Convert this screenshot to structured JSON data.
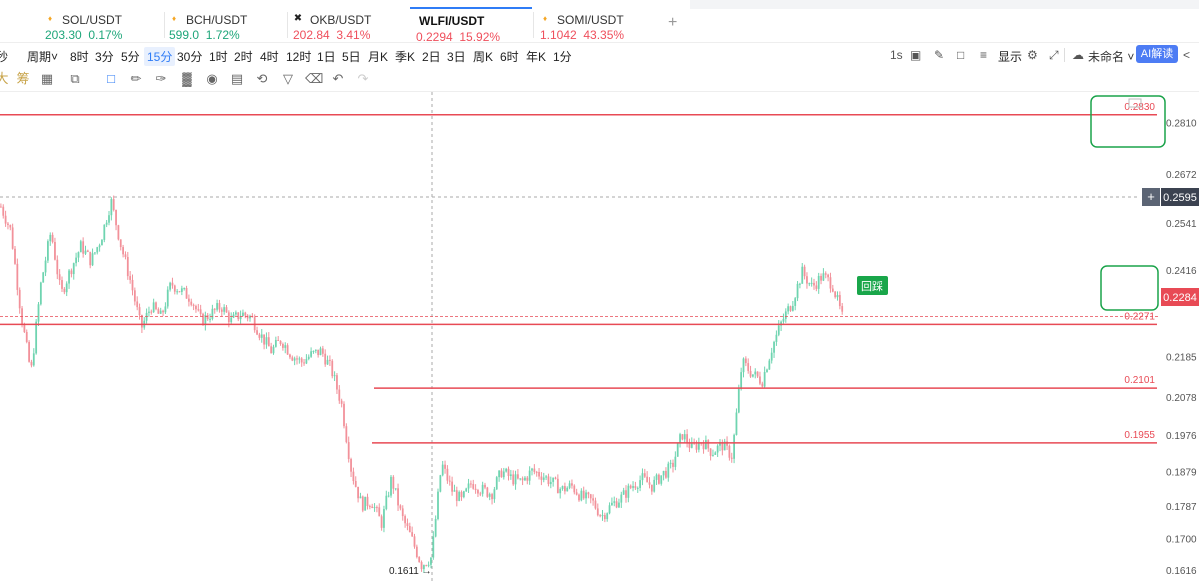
{
  "tickers": [
    {
      "symbol": "SOL/USDT",
      "price": "203.30",
      "change": "0.17%",
      "dir": "up",
      "icon": "coin-icon"
    },
    {
      "symbol": "BCH/USDT",
      "price": "599.0",
      "change": "1.72%",
      "dir": "up",
      "icon": "coin-icon"
    },
    {
      "symbol": "OKB/USDT",
      "price": "202.84",
      "change": "3.41%",
      "dir": "dn",
      "icon": "okb-logo-icon"
    },
    {
      "symbol": "WLFI/USDT",
      "price": "0.2294",
      "change": "15.92%",
      "dir": "dn",
      "icon": "",
      "active": true
    },
    {
      "symbol": "SOMI/USDT",
      "price": "1.1042",
      "change": "43.35%",
      "dir": "dn",
      "icon": "coin-icon"
    }
  ],
  "add_tab_label": "+",
  "periods": [
    "秒",
    "周期",
    "8时",
    "3分",
    "5分",
    "15分",
    "30分",
    "1时",
    "2时",
    "4时",
    "12时",
    "1日",
    "5日",
    "月K",
    "季K",
    "2日",
    "3日",
    "周K",
    "6时",
    "年K",
    "1分"
  ],
  "active_period": "15分",
  "right_tools": {
    "interval": "1s",
    "display": "显示",
    "layout_name": "未命名",
    "ai_button": "AI解读"
  },
  "draw_tools": [
    "fib-icon",
    "compare-icon",
    "copy-layout-icon",
    "pen-tool-icon",
    "ruler-icon",
    "highlighter-icon",
    "brush-icon",
    "indicator-icon",
    "lock-icon",
    "note-icon",
    "magnet-icon",
    "filter-icon",
    "trash-icon",
    "undo-icon",
    "redo-icon"
  ],
  "draw_left_labels": [
    "大",
    "筹"
  ],
  "chart_data": {
    "type": "candlestick",
    "y_axis_ticks": [
      "0.2810",
      "0.2672",
      "0.2541",
      "0.2416",
      "0.2185",
      "0.2078",
      "0.1976",
      "0.1879",
      "0.1787",
      "0.1700",
      "0.1616"
    ],
    "ylim": [
      0.1616,
      0.288
    ],
    "horizontal_levels": [
      {
        "value": 0.283,
        "label": "0.2830",
        "boxed": true
      },
      {
        "value": 0.2271,
        "label": "0.2271",
        "boxed": true
      },
      {
        "value": 0.2101,
        "label": "0.2101",
        "boxed": false
      },
      {
        "value": 0.1955,
        "label": "0.1955",
        "boxed": false
      }
    ],
    "crosshair_price": "0.2595",
    "last_price": "0.2284",
    "low_marker": "0.1611",
    "retest_label": "回踩",
    "colors": {
      "up": "#6fd4b0",
      "down": "#f2919a",
      "line": "#e84a55",
      "box": "#1aa34a",
      "label_bg": "#19a64a"
    },
    "grid": false,
    "price_path": [
      0.2585,
      0.252,
      0.23,
      0.214,
      0.238,
      0.252,
      0.235,
      0.242,
      0.248,
      0.244,
      0.25,
      0.26,
      0.248,
      0.238,
      0.226,
      0.232,
      0.229,
      0.238,
      0.236,
      0.234,
      0.228,
      0.23,
      0.232,
      0.228,
      0.23,
      0.229,
      0.224,
      0.22,
      0.223,
      0.219,
      0.217,
      0.219,
      0.22,
      0.215,
      0.206,
      0.188,
      0.179,
      0.18,
      0.174,
      0.186,
      0.176,
      0.17,
      0.163,
      0.165,
      0.19,
      0.183,
      0.18,
      0.185,
      0.183,
      0.182,
      0.188,
      0.186,
      0.185,
      0.188,
      0.187,
      0.185,
      0.183,
      0.184,
      0.181,
      0.18,
      0.176,
      0.179,
      0.181,
      0.184,
      0.186,
      0.184,
      0.187,
      0.189,
      0.198,
      0.194,
      0.196,
      0.193,
      0.195,
      0.192,
      0.217,
      0.214,
      0.212,
      0.221,
      0.228,
      0.233,
      0.241,
      0.237,
      0.24,
      0.238,
      0.229
    ]
  }
}
